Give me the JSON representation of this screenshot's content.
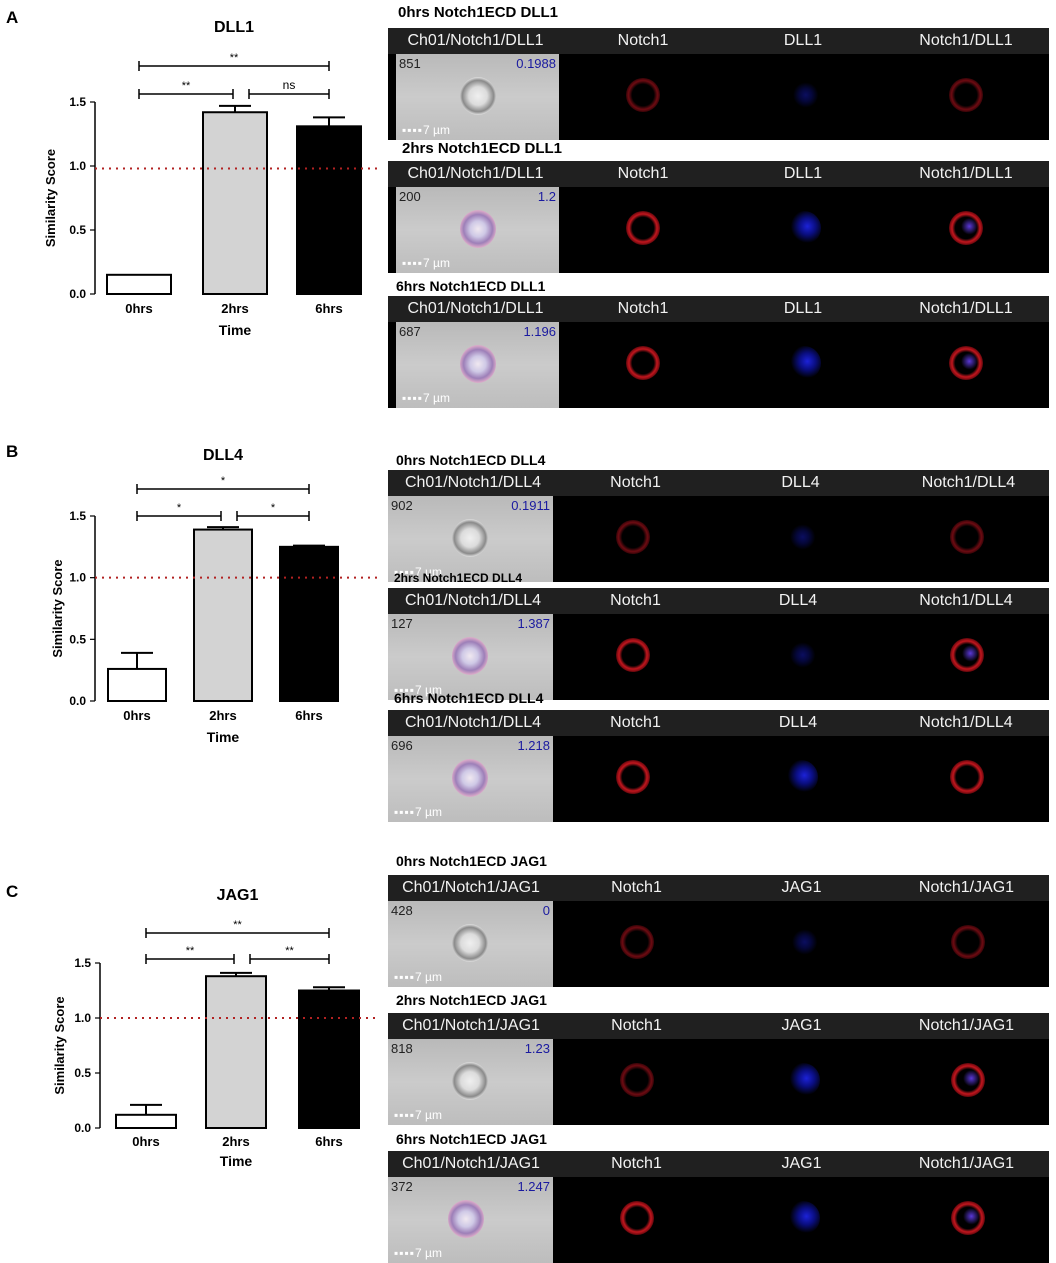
{
  "panels": [
    {
      "letter": "A",
      "title": "DLL1",
      "xlabel": "Time",
      "ylabel": "Similarity Score",
      "sig": [
        {
          "label": "**"
        },
        {
          "label": "**"
        },
        {
          "label": "ns"
        }
      ],
      "strips": [
        {
          "title": "0hrs Notch1ECD DLL1",
          "obj": "851",
          "score": "0.1988",
          "h1": "Ch01/Notch1/DLL1",
          "h2": "Notch1",
          "h3": "DLL1",
          "h4": "Notch1/DLL1",
          "scale": "7 µm"
        },
        {
          "title": "2hrs Notch1ECD DLL1",
          "obj": "200",
          "score": "1.2",
          "h1": "Ch01/Notch1/DLL1",
          "h2": "Notch1",
          "h3": "DLL1",
          "h4": "Notch1/DLL1",
          "scale": "7 µm"
        },
        {
          "title": "6hrs Notch1ECD DLL1",
          "obj": "687",
          "score": "1.196",
          "h1": "Ch01/Notch1/DLL1",
          "h2": "Notch1",
          "h3": "DLL1",
          "h4": "Notch1/DLL1",
          "scale": "7 µm"
        }
      ]
    },
    {
      "letter": "B",
      "title": "DLL4",
      "xlabel": "Time",
      "ylabel": "Similarity Score",
      "sig": [
        {
          "label": "*"
        },
        {
          "label": "*"
        },
        {
          "label": "*"
        }
      ],
      "strips": [
        {
          "title": "0hrs Notch1ECD DLL4",
          "obj": "902",
          "score": "0.1911",
          "h1": "Ch01/Notch1/DLL4",
          "h2": "Notch1",
          "h3": "DLL4",
          "h4": "Notch1/DLL4",
          "scale": "7 µm"
        },
        {
          "title": "2hrs Notch1ECD DLL4",
          "obj": "127",
          "score": "1.387",
          "h1": "Ch01/Notch1/DLL4",
          "h2": "Notch1",
          "h3": "DLL4",
          "h4": "Notch1/DLL4",
          "scale": "7 µm"
        },
        {
          "title": "6hrs Notch1ECD DLL4",
          "obj": "696",
          "score": "1.218",
          "h1": "Ch01/Notch1/DLL4",
          "h2": "Notch1",
          "h3": "DLL4",
          "h4": "Notch1/DLL4",
          "scale": "7 µm"
        }
      ]
    },
    {
      "letter": "C",
      "title": "JAG1",
      "xlabel": "Time",
      "ylabel": "Similarity Score",
      "sig": [
        {
          "label": "**"
        },
        {
          "label": "**"
        },
        {
          "label": "**"
        }
      ],
      "strips": [
        {
          "title": "0hrs Notch1ECD JAG1",
          "obj": "428",
          "score": "0",
          "h1": "Ch01/Notch1/JAG1",
          "h2": "Notch1",
          "h3": "JAG1",
          "h4": "Notch1/JAG1",
          "scale": "7 µm"
        },
        {
          "title": "2hrs Notch1ECD JAG1",
          "obj": "818",
          "score": "1.23",
          "h1": "Ch01/Notch1/JAG1",
          "h2": "Notch1",
          "h3": "JAG1",
          "h4": "Notch1/JAG1",
          "scale": "7 µm"
        },
        {
          "title": "6hrs Notch1ECD JAG1",
          "obj": "372",
          "score": "1.247",
          "h1": "Ch01/Notch1/JAG1",
          "h2": "Notch1",
          "h3": "JAG1",
          "h4": "Notch1/JAG1",
          "scale": "7 µm"
        }
      ]
    }
  ],
  "chart_data": [
    {
      "type": "bar",
      "title": "DLL1",
      "xlabel": "Time",
      "ylabel": "Similarity Score",
      "categories": [
        "0hrs",
        "2hrs",
        "6hrs"
      ],
      "values": [
        0.15,
        1.42,
        1.31
      ],
      "errors": [
        0,
        0.05,
        0.07
      ],
      "bar_colors": [
        "#ffffff",
        "#d3d3d3",
        "#000000"
      ],
      "ylim": [
        0,
        1.5
      ],
      "yticks": [
        "0.0",
        "0.5",
        "1.0",
        "1.5"
      ],
      "reference_line": 0.98,
      "reference_color": "#b22222",
      "comparisons": [
        {
          "from": "0hrs",
          "to": "6hrs",
          "label": "**"
        },
        {
          "from": "0hrs",
          "to": "2hrs",
          "label": "**"
        },
        {
          "from": "2hrs",
          "to": "6hrs",
          "label": "ns"
        }
      ]
    },
    {
      "type": "bar",
      "title": "DLL4",
      "xlabel": "Time",
      "ylabel": "Similarity Score",
      "categories": [
        "0hrs",
        "2hrs",
        "6hrs"
      ],
      "values": [
        0.26,
        1.39,
        1.25
      ],
      "errors": [
        0.13,
        0.02,
        0.01
      ],
      "bar_colors": [
        "#ffffff",
        "#d3d3d3",
        "#000000"
      ],
      "ylim": [
        0,
        1.5
      ],
      "yticks": [
        "0.0",
        "0.5",
        "1.0",
        "1.5"
      ],
      "reference_line": 1.0,
      "reference_color": "#b22222",
      "comparisons": [
        {
          "from": "0hrs",
          "to": "6hrs",
          "label": "*"
        },
        {
          "from": "0hrs",
          "to": "2hrs",
          "label": "*"
        },
        {
          "from": "2hrs",
          "to": "6hrs",
          "label": "*"
        }
      ]
    },
    {
      "type": "bar",
      "title": "JAG1",
      "xlabel": "Time",
      "ylabel": "Similarity Score",
      "categories": [
        "0hrs",
        "2hrs",
        "6hrs"
      ],
      "values": [
        0.12,
        1.38,
        1.25
      ],
      "errors": [
        0.09,
        0.03,
        0.03
      ],
      "bar_colors": [
        "#ffffff",
        "#d3d3d3",
        "#000000"
      ],
      "ylim": [
        0,
        1.5
      ],
      "yticks": [
        "0.0",
        "0.5",
        "1.0",
        "1.5"
      ],
      "reference_line": 1.0,
      "reference_color": "#b22222",
      "comparisons": [
        {
          "from": "0hrs",
          "to": "6hrs",
          "label": "**"
        },
        {
          "from": "0hrs",
          "to": "2hrs",
          "label": "**"
        },
        {
          "from": "2hrs",
          "to": "6hrs",
          "label": "**"
        }
      ]
    }
  ]
}
